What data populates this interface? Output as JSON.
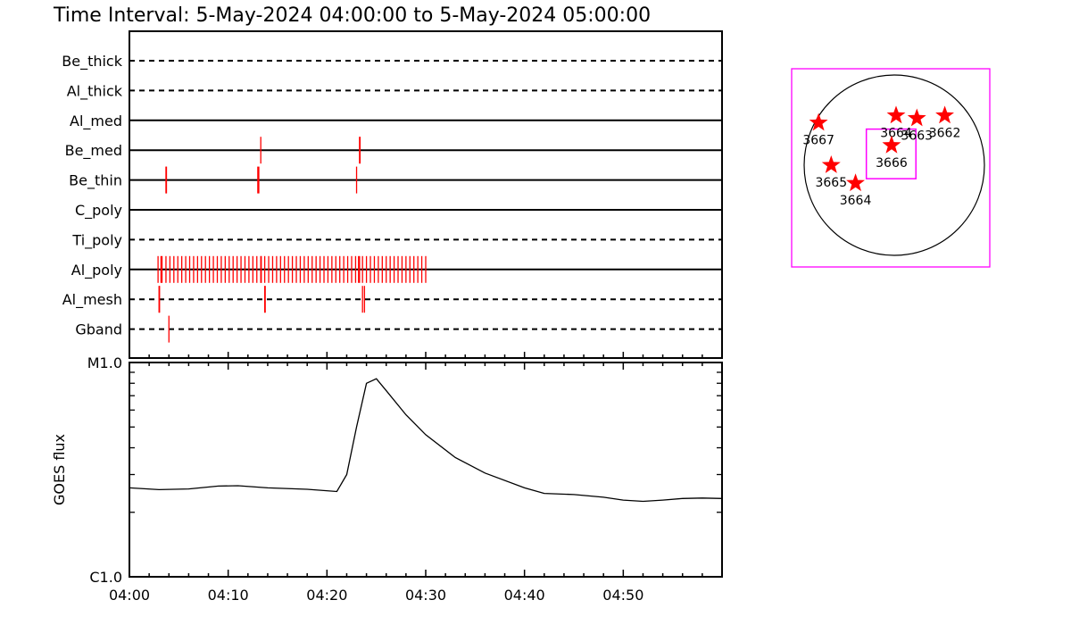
{
  "header": {
    "title": "Time Interval:  5-May-2024 04:00:00 to  5-May-2024 05:00:00"
  },
  "colors": {
    "marks": "#ff0000",
    "frame": "#ff00ff",
    "axes": "#000000"
  },
  "chart_data": [
    {
      "type": "timeline",
      "x_range": [
        "04:00",
        "05:00"
      ],
      "rows": [
        {
          "label": "Be_thick",
          "line_style": "dashed",
          "events": []
        },
        {
          "label": "Al_thick",
          "line_style": "dashed",
          "events": []
        },
        {
          "label": "Al_med",
          "line_style": "solid",
          "events": []
        },
        {
          "label": "Be_med",
          "line_style": "solid",
          "events": [
            13.3,
            23.3,
            23.35
          ]
        },
        {
          "label": "Be_thin",
          "line_style": "solid",
          "events": [
            3.7,
            3.75,
            13.0,
            13.1,
            23.0
          ]
        },
        {
          "label": "C_poly",
          "line_style": "solid",
          "events": []
        },
        {
          "label": "Ti_poly",
          "line_style": "dashed",
          "events": []
        },
        {
          "label": "Al_poly",
          "line_style": "solid",
          "events": [
            2.9,
            3.2,
            3.3,
            3.7,
            4.1,
            4.5,
            4.9,
            5.3,
            5.7,
            6.1,
            6.5,
            6.9,
            7.3,
            7.7,
            8.1,
            8.5,
            8.9,
            9.3,
            9.7,
            10.1,
            10.5,
            10.9,
            11.3,
            11.7,
            12.1,
            12.5,
            12.9,
            13.3,
            13.35,
            13.7,
            14.1,
            14.5,
            14.9,
            15.3,
            15.7,
            16.1,
            16.5,
            16.9,
            17.3,
            17.7,
            18.1,
            18.5,
            18.9,
            19.3,
            19.7,
            20.1,
            20.5,
            20.9,
            21.3,
            21.7,
            22.1,
            22.5,
            22.9,
            23.2,
            23.3,
            23.6,
            24.0,
            24.4,
            24.8,
            25.2,
            25.6,
            26.0,
            26.4,
            26.8,
            27.2,
            27.6,
            28.0,
            28.4,
            28.8,
            29.2,
            29.6,
            30.0
          ]
        },
        {
          "label": "Al_mesh",
          "line_style": "dashed",
          "events": [
            3.0,
            3.05,
            13.7,
            13.75,
            23.6,
            23.8
          ]
        },
        {
          "label": "Gband",
          "line_style": "dashed",
          "events": [
            4.0
          ]
        }
      ]
    },
    {
      "type": "line",
      "ylabel": "GOES flux",
      "y_scale": "log",
      "y_labels": [
        "M1.0",
        "C1.0"
      ],
      "ylim": [
        1e-06,
        1e-05
      ],
      "x_ticks": [
        "04:00",
        "04:10",
        "04:20",
        "04:30",
        "04:40",
        "04:50"
      ],
      "x_minutes": [
        0,
        3,
        6,
        9,
        11,
        14,
        18,
        21,
        22,
        23,
        24,
        25,
        26,
        28,
        30,
        33,
        36,
        40,
        42,
        45,
        48,
        50,
        52,
        54,
        56,
        58,
        60
      ],
      "y_values": [
        2.6e-06,
        2.55e-06,
        2.57e-06,
        2.65e-06,
        2.66e-06,
        2.6e-06,
        2.56e-06,
        2.5e-06,
        3e-06,
        5e-06,
        8e-06,
        8.4e-06,
        7.4e-06,
        5.7e-06,
        4.6e-06,
        3.6e-06,
        3.05e-06,
        2.6e-06,
        2.45e-06,
        2.42e-06,
        2.35e-06,
        2.28e-06,
        2.25e-06,
        2.28e-06,
        2.32e-06,
        2.33e-06,
        2.32e-06
      ]
    },
    {
      "type": "scatter",
      "description_shape": "solar disk with active regions",
      "points": [
        {
          "label": "3667",
          "x": -0.84,
          "y": 0.47
        },
        {
          "label": "3664",
          "x": 0.02,
          "y": 0.55
        },
        {
          "label": "3663",
          "x": 0.25,
          "y": 0.52
        },
        {
          "label": "3662",
          "x": 0.56,
          "y": 0.55
        },
        {
          "label": "3666",
          "x": -0.03,
          "y": 0.22
        },
        {
          "label": "3665",
          "x": -0.7,
          "y": 0.0
        },
        {
          "label": "3664",
          "x": -0.43,
          "y": -0.2
        }
      ],
      "fov_box": {
        "x_range": [
          -0.31,
          0.24
        ],
        "y_range": [
          -0.15,
          0.4
        ]
      }
    }
  ]
}
